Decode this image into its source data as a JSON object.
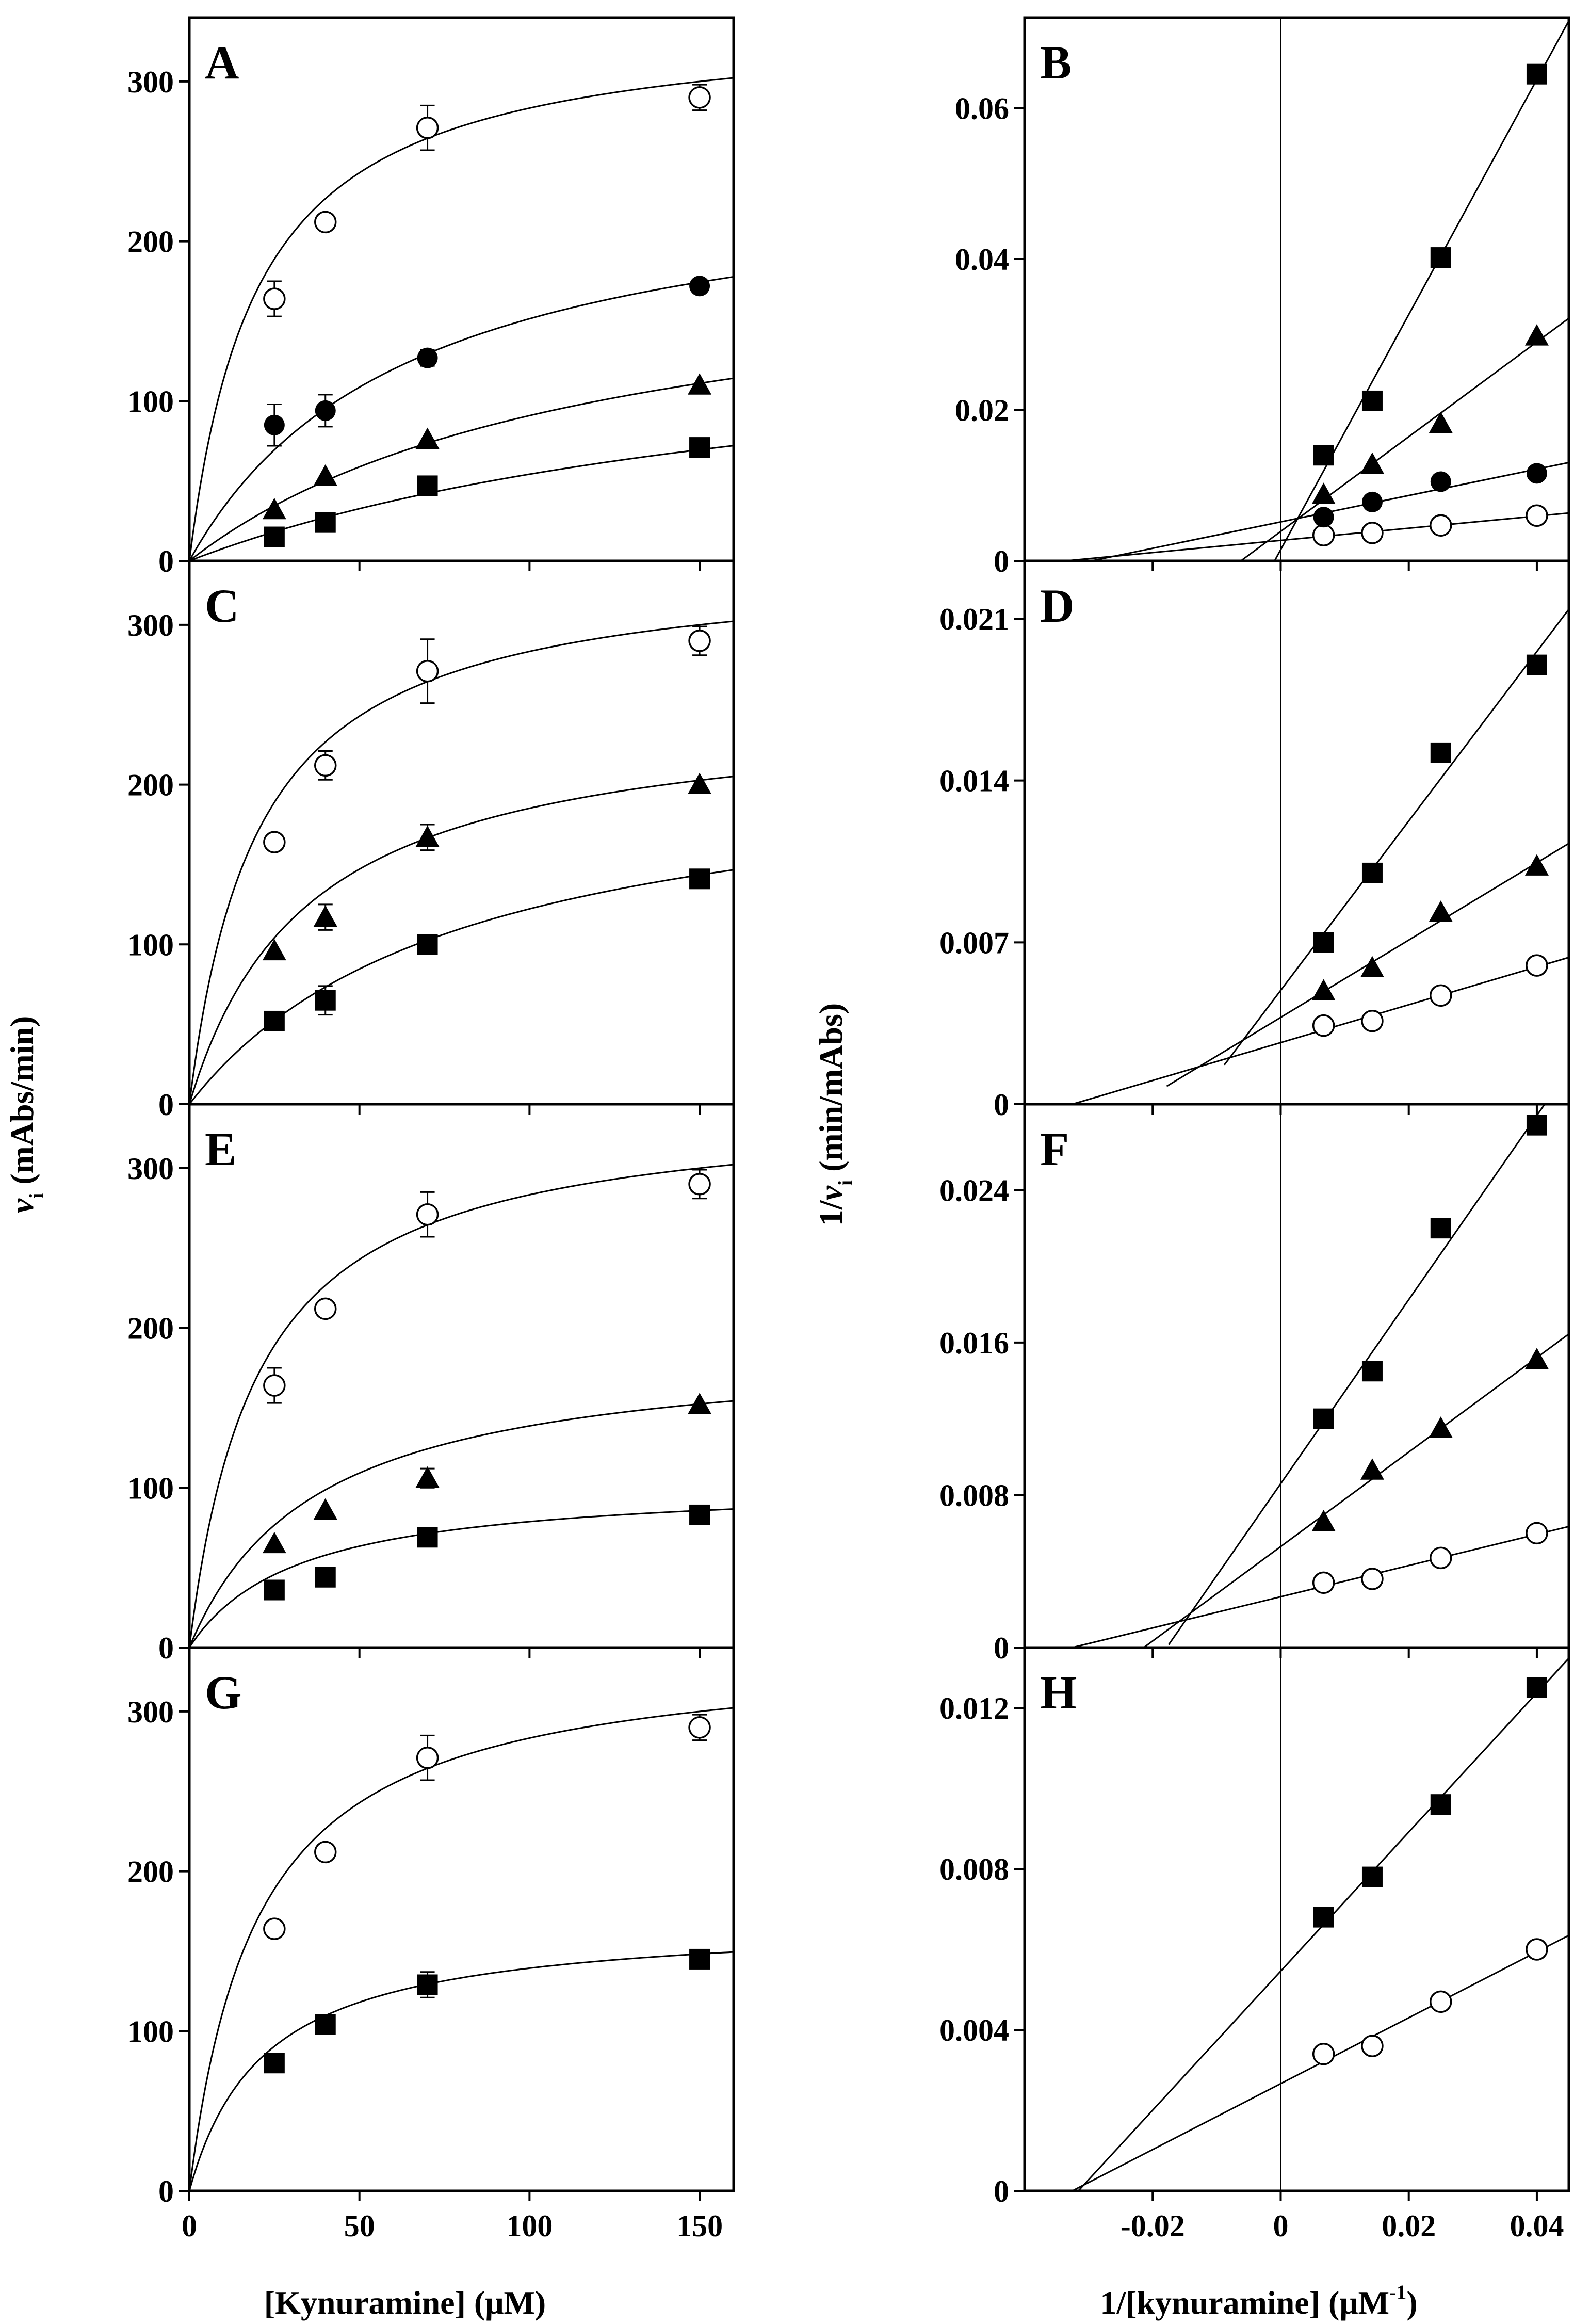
{
  "figure": {
    "left_xlabel": "[Kynuramine] (μM)",
    "right_xlabel_main": "1/[kynuramine] (μM",
    "right_xlabel_sup": "-1",
    "right_xlabel_close": ")",
    "left_ylabel_v": "v",
    "left_ylabel_sub": "i",
    "left_ylabel_rest": " (mAbs/min)",
    "right_ylabel_pre": "1/",
    "right_ylabel_v": "v",
    "right_ylabel_sub": "i",
    "right_ylabel_rest": " (min/mAbs)"
  },
  "chart_data": [
    {
      "panel": "A",
      "type": "scatter",
      "label": "A",
      "xlim": [
        0,
        160
      ],
      "ylim": [
        0,
        340
      ],
      "xticks": [
        0,
        50,
        100,
        150
      ],
      "xtick_labels": [
        "0",
        "50",
        "100",
        "150"
      ],
      "yticks": [
        0,
        100,
        200,
        300
      ],
      "ytick_labels": [
        "0",
        "100",
        "200",
        "300"
      ],
      "x": [
        25,
        40,
        70,
        150
      ],
      "series": [
        {
          "marker": "open-circle",
          "values": [
            164,
            212,
            271,
            290
          ],
          "errors": [
            11,
            4,
            14,
            8
          ],
          "fit": {
            "model": "mm",
            "vmax": 340,
            "km": 20
          }
        },
        {
          "marker": "filled-circle",
          "values": [
            85,
            94,
            127,
            172
          ],
          "errors": [
            13,
            10,
            5,
            0
          ],
          "fit": {
            "model": "mm",
            "vmax": 250,
            "km": 65
          }
        },
        {
          "marker": "filled-triangle",
          "values": [
            32,
            53,
            76,
            110
          ],
          "errors": [
            0,
            0,
            0,
            0
          ],
          "fit": {
            "model": "mm",
            "vmax": 200,
            "km": 120
          }
        },
        {
          "marker": "filled-square",
          "values": [
            15,
            24,
            47,
            71
          ],
          "errors": [
            0,
            0,
            0,
            0
          ],
          "fit": {
            "model": "mm",
            "vmax": 160,
            "km": 195
          }
        }
      ]
    },
    {
      "panel": "B",
      "type": "line",
      "label": "B",
      "xlim": [
        -0.04,
        0.045
      ],
      "ylim": [
        0,
        0.072
      ],
      "vline": 0,
      "xticks": [
        -0.02,
        0,
        0.02,
        0.04
      ],
      "xtick_labels": [
        "-0.02",
        "0",
        "0.02",
        "0.04"
      ],
      "yticks": [
        0,
        0.02,
        0.04,
        0.06
      ],
      "ytick_labels": [
        "0",
        "0.02",
        "0.04",
        "0.06"
      ],
      "x": [
        0.0067,
        0.0143,
        0.025,
        0.04
      ],
      "series": [
        {
          "marker": "open-circle",
          "values": [
            0.0034,
            0.0037,
            0.0047,
            0.006
          ],
          "fit": {
            "model": "line",
            "x0": -0.0375,
            "x1": 0.045
          }
        },
        {
          "marker": "filled-circle",
          "values": [
            0.0058,
            0.0078,
            0.0105,
            0.0116
          ],
          "fit": {
            "model": "line",
            "x0": -0.0375,
            "x1": 0.045
          }
        },
        {
          "marker": "filled-triangle",
          "values": [
            0.0088,
            0.0128,
            0.0182,
            0.0298
          ],
          "fit": {
            "model": "line",
            "x0": -0.0137,
            "x1": 0.045
          }
        },
        {
          "marker": "filled-square",
          "values": [
            0.014,
            0.0212,
            0.0402,
            0.0645
          ],
          "fit": {
            "model": "line",
            "x0": -0.0082,
            "x1": 0.045
          }
        }
      ]
    },
    {
      "panel": "C",
      "type": "scatter",
      "label": "C",
      "xlim": [
        0,
        160
      ],
      "ylim": [
        0,
        340
      ],
      "xticks": [
        0,
        50,
        100,
        150
      ],
      "xtick_labels": [
        "",
        "",
        "",
        ""
      ],
      "yticks": [
        0,
        100,
        200,
        300
      ],
      "ytick_labels": [
        "0",
        "100",
        "200",
        "300"
      ],
      "x": [
        25,
        40,
        70,
        150
      ],
      "series": [
        {
          "marker": "open-circle",
          "values": [
            164,
            212,
            271,
            290
          ],
          "errors": [
            4,
            9,
            20,
            9
          ],
          "fit": {
            "model": "mm",
            "vmax": 340,
            "km": 20
          }
        },
        {
          "marker": "filled-triangle",
          "values": [
            96,
            117,
            167,
            200
          ],
          "errors": [
            0,
            8,
            8,
            0
          ],
          "fit": {
            "model": "mm",
            "vmax": 250,
            "km": 35
          }
        },
        {
          "marker": "filled-square",
          "values": [
            52,
            65,
            100,
            141
          ],
          "errors": [
            0,
            9,
            0,
            0
          ],
          "fit": {
            "model": "mm",
            "vmax": 220,
            "km": 80
          }
        }
      ]
    },
    {
      "panel": "D",
      "type": "line",
      "label": "D",
      "xlim": [
        -0.04,
        0.045
      ],
      "ylim": [
        0,
        0.0235
      ],
      "vline": 0,
      "xticks": [
        -0.02,
        0,
        0.02,
        0.04
      ],
      "xtick_labels": [
        "",
        "",
        "",
        ""
      ],
      "yticks": [
        0,
        0.007,
        0.014,
        0.021
      ],
      "ytick_labels": [
        "0",
        "0.007",
        "0.014",
        "0.021"
      ],
      "x": [
        0.0067,
        0.0143,
        0.025,
        0.04
      ],
      "series": [
        {
          "marker": "open-circle",
          "values": [
            0.0034,
            0.0036,
            0.0047,
            0.006
          ],
          "fit": {
            "model": "line",
            "x0": -0.0375,
            "x1": 0.045
          }
        },
        {
          "marker": "filled-triangle",
          "values": [
            0.0049,
            0.0059,
            0.0083,
            0.0103
          ],
          "fit": {
            "model": "line",
            "x0": -0.0178,
            "x1": 0.045
          }
        },
        {
          "marker": "filled-square",
          "values": [
            0.007,
            0.01,
            0.0152,
            0.019
          ],
          "fit": {
            "model": "line",
            "x0": -0.0088,
            "x1": 0.045
          }
        }
      ]
    },
    {
      "panel": "E",
      "type": "scatter",
      "label": "E",
      "xlim": [
        0,
        160
      ],
      "ylim": [
        0,
        340
      ],
      "xticks": [
        0,
        50,
        100,
        150
      ],
      "xtick_labels": [
        "",
        "",
        "",
        ""
      ],
      "yticks": [
        0,
        100,
        200,
        300
      ],
      "ytick_labels": [
        "0",
        "100",
        "200",
        "300"
      ],
      "x": [
        25,
        40,
        70,
        150
      ],
      "series": [
        {
          "marker": "open-circle",
          "values": [
            164,
            212,
            271,
            290
          ],
          "errors": [
            11,
            4,
            14,
            9
          ],
          "fit": {
            "model": "mm",
            "vmax": 340,
            "km": 20
          }
        },
        {
          "marker": "filled-triangle",
          "values": [
            65,
            86,
            106,
            152
          ],
          "errors": [
            0,
            0,
            6,
            0
          ],
          "fit": {
            "model": "mm",
            "vmax": 190,
            "km": 37
          }
        },
        {
          "marker": "filled-square",
          "values": [
            36,
            44,
            69,
            83
          ],
          "errors": [
            0,
            0,
            0,
            0
          ],
          "fit": {
            "model": "mm",
            "vmax": 104,
            "km": 32
          }
        }
      ]
    },
    {
      "panel": "F",
      "type": "line",
      "label": "F",
      "xlim": [
        -0.04,
        0.045
      ],
      "ylim": [
        0,
        0.0285
      ],
      "vline": 0,
      "xticks": [
        -0.02,
        0,
        0.02,
        0.04
      ],
      "xtick_labels": [
        "",
        "",
        "",
        ""
      ],
      "yticks": [
        0,
        0.008,
        0.016,
        0.024
      ],
      "ytick_labels": [
        "0",
        "0.008",
        "0.016",
        "0.024"
      ],
      "x": [
        0.0067,
        0.0143,
        0.025,
        0.04
      ],
      "series": [
        {
          "marker": "open-circle",
          "values": [
            0.0034,
            0.0036,
            0.0047,
            0.006
          ],
          "fit": {
            "model": "line",
            "x0": -0.0375,
            "x1": 0.045
          }
        },
        {
          "marker": "filled-triangle",
          "values": [
            0.0066,
            0.0093,
            0.0115,
            0.0151
          ],
          "fit": {
            "model": "line",
            "x0": -0.0215,
            "x1": 0.045
          }
        },
        {
          "marker": "filled-square",
          "values": [
            0.012,
            0.0145,
            0.022,
            0.0274
          ],
          "fit": {
            "model": "line",
            "x0": -0.0175,
            "x1": 0.045
          }
        }
      ]
    },
    {
      "panel": "G",
      "type": "scatter",
      "label": "G",
      "xlim": [
        0,
        160
      ],
      "ylim": [
        0,
        340
      ],
      "xticks": [
        0,
        50,
        100,
        150
      ],
      "xtick_labels": [
        "0",
        "50",
        "100",
        "150"
      ],
      "yticks": [
        0,
        100,
        200,
        300
      ],
      "ytick_labels": [
        "0",
        "100",
        "200",
        "300"
      ],
      "x": [
        25,
        40,
        70,
        150
      ],
      "series": [
        {
          "marker": "open-circle",
          "values": [
            164,
            212,
            271,
            290
          ],
          "errors": [
            0,
            4,
            14,
            8
          ],
          "fit": {
            "model": "mm",
            "vmax": 340,
            "km": 20
          }
        },
        {
          "marker": "filled-square",
          "values": [
            80,
            104,
            129,
            145
          ],
          "errors": [
            0,
            0,
            8,
            0
          ],
          "fit": {
            "model": "mm",
            "vmax": 170,
            "km": 22
          }
        }
      ]
    },
    {
      "panel": "H",
      "type": "line",
      "label": "H",
      "xlim": [
        -0.04,
        0.045
      ],
      "ylim": [
        0,
        0.0135
      ],
      "vline": 0,
      "xticks": [
        -0.02,
        0,
        0.02,
        0.04
      ],
      "xtick_labels": [
        "-0.02",
        "0",
        "0.02",
        "0.04"
      ],
      "yticks": [
        0,
        0.004,
        0.008,
        0.012
      ],
      "ytick_labels": [
        "0",
        "0.004",
        "0.008",
        "0.012"
      ],
      "x": [
        0.0067,
        0.0143,
        0.025,
        0.04
      ],
      "series": [
        {
          "marker": "open-circle",
          "values": [
            0.0034,
            0.0036,
            0.0047,
            0.006
          ],
          "fit": {
            "model": "line",
            "x0": -0.0375,
            "x1": 0.045
          }
        },
        {
          "marker": "filled-square",
          "values": [
            0.0068,
            0.0078,
            0.0096,
            0.0125
          ],
          "fit": {
            "model": "line",
            "x0": -0.0375,
            "x1": 0.045
          }
        }
      ]
    }
  ]
}
